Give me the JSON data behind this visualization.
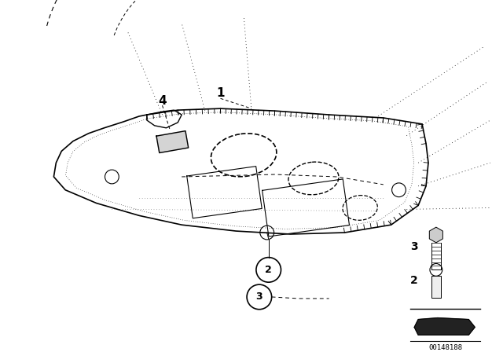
{
  "bg_color": "#ffffff",
  "fig_width": 6.4,
  "fig_height": 4.48,
  "dpi": 100,
  "catalog_number": "00148188",
  "lc": "#000000"
}
